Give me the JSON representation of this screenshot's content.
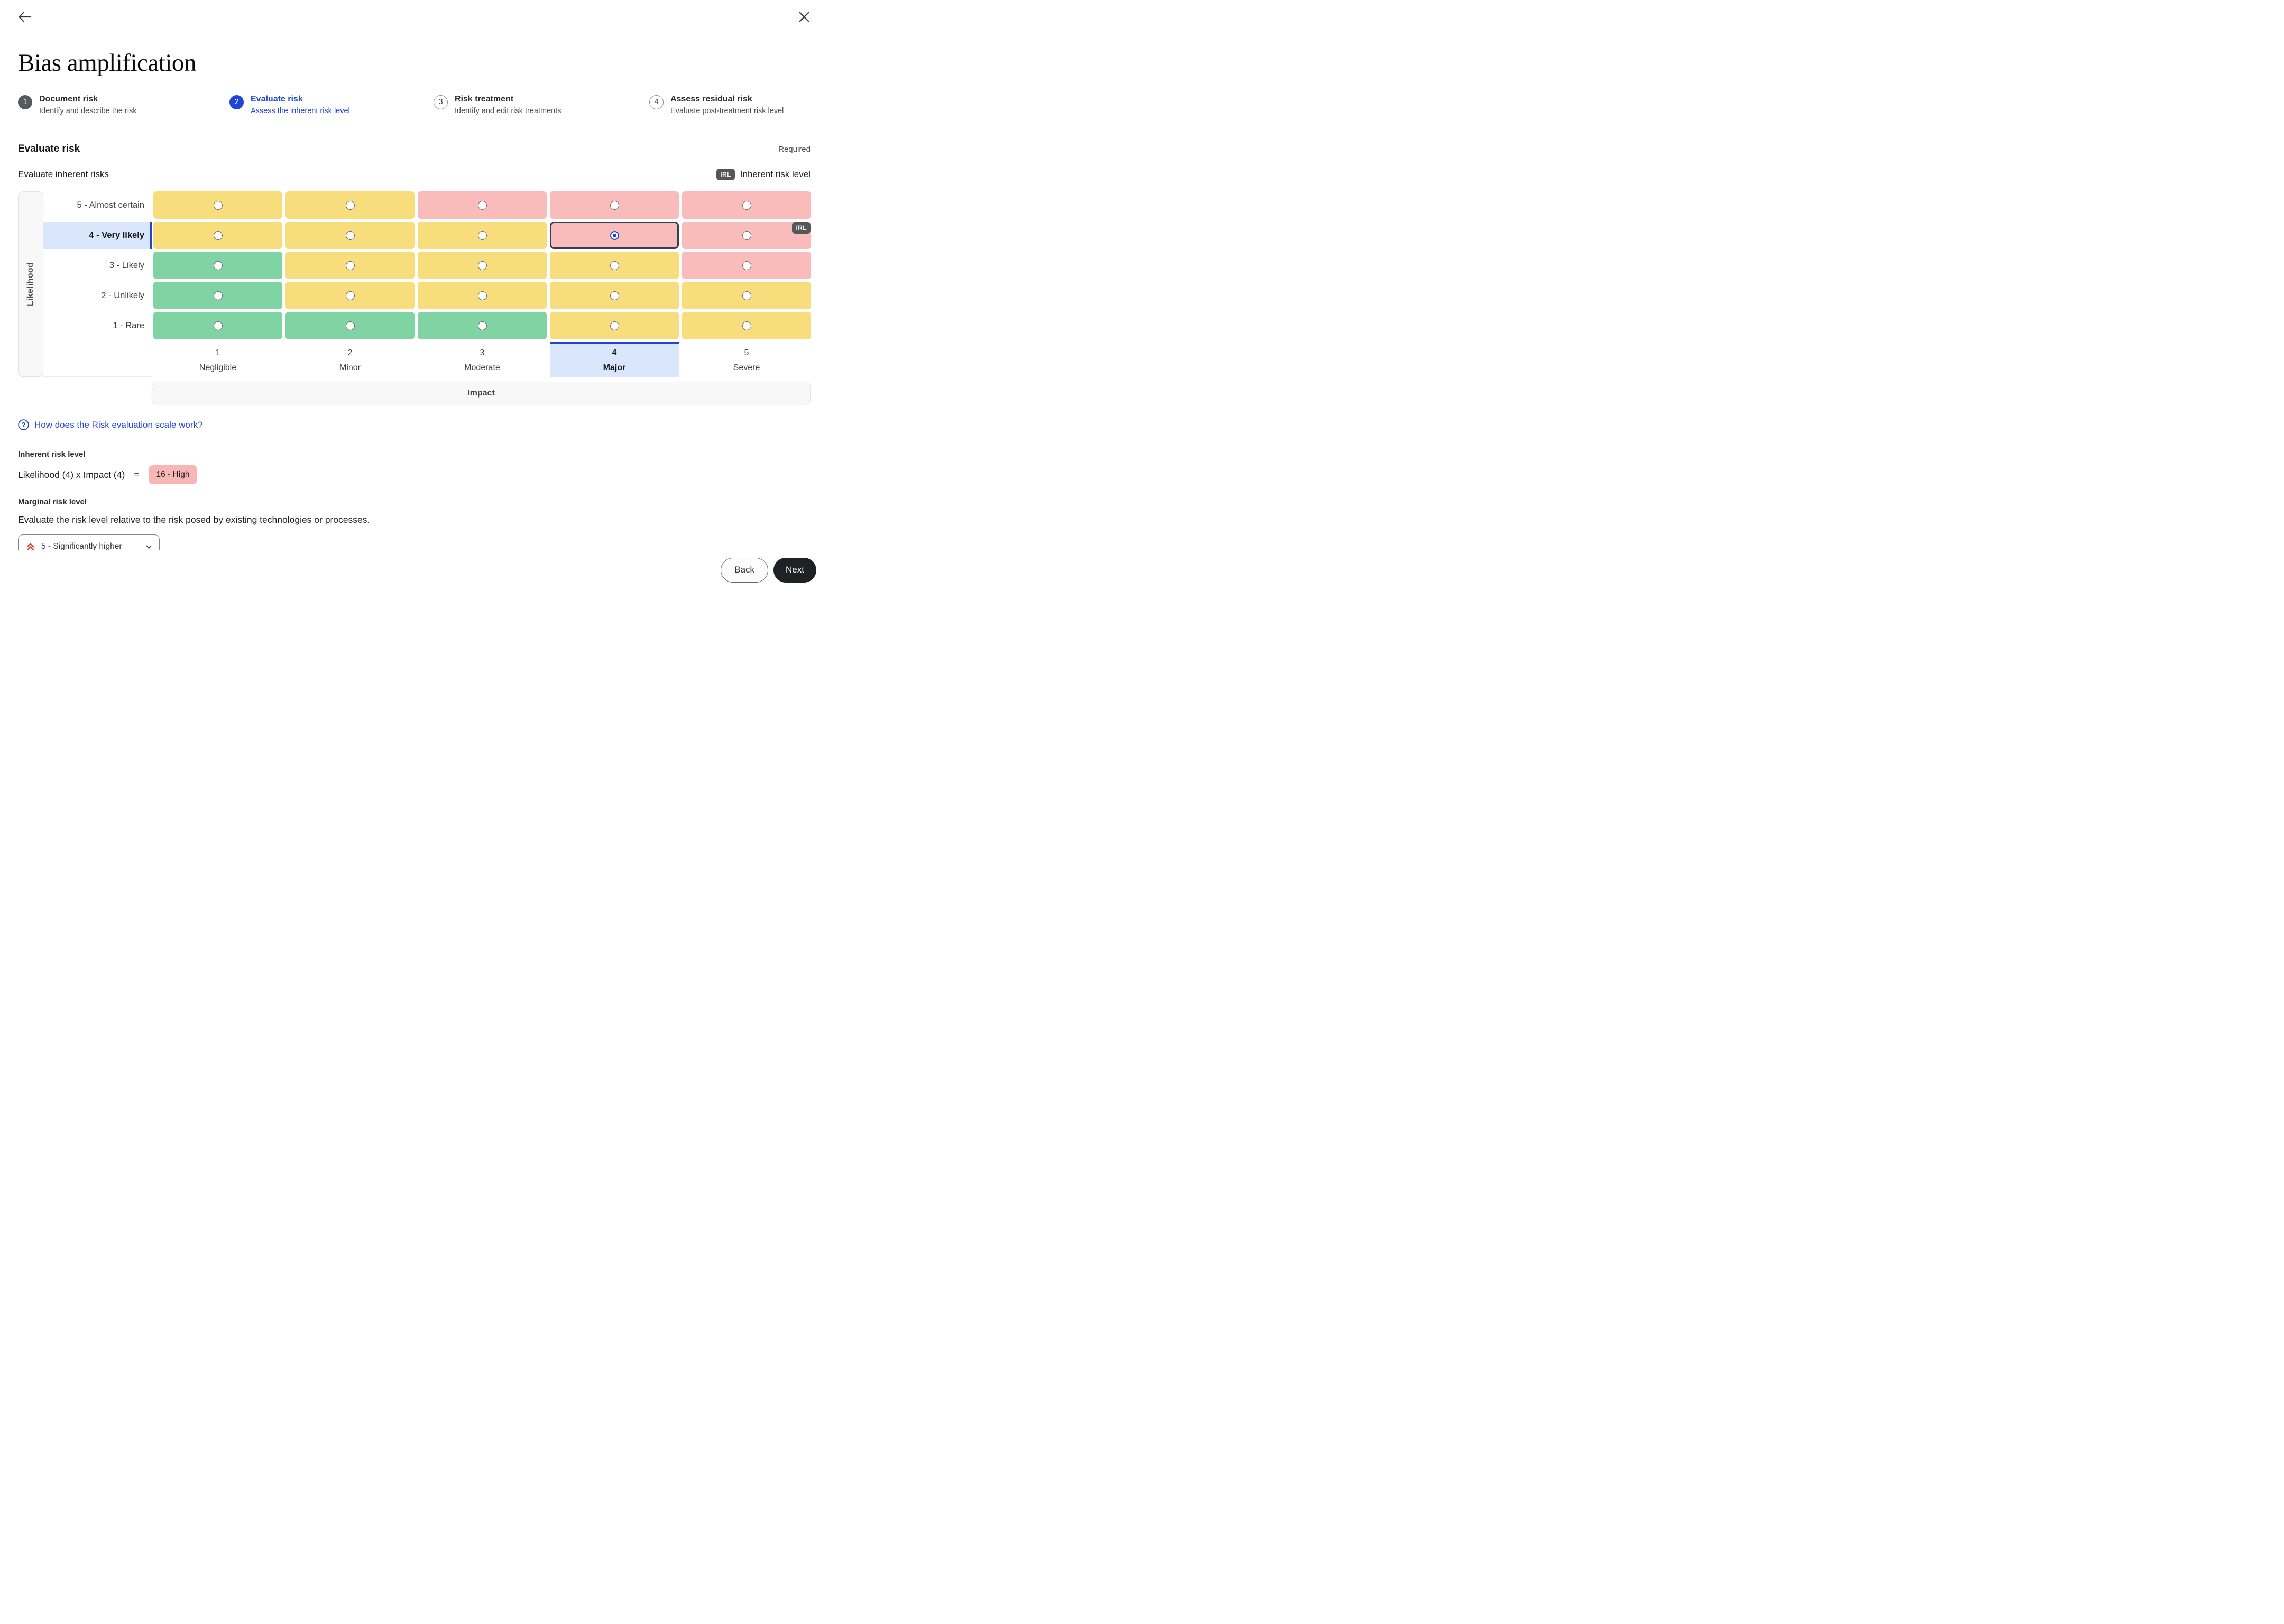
{
  "topbar": {
    "back_icon": "arrow-left",
    "close_icon": "x"
  },
  "page": {
    "title": "Bias amplification"
  },
  "stepper": {
    "steps": [
      {
        "number": "1",
        "title": "Document risk",
        "subtitle": "Identify and describe the risk",
        "state": "done"
      },
      {
        "number": "2",
        "title": "Evaluate risk",
        "subtitle": "Assess the inherent risk level",
        "state": "active"
      },
      {
        "number": "3",
        "title": "Risk treatment",
        "subtitle": "Identify and edit risk treatments",
        "state": "upcoming"
      },
      {
        "number": "4",
        "title": "Assess residual risk",
        "subtitle": "Evaluate post-treatment risk level",
        "state": "upcoming"
      }
    ]
  },
  "section": {
    "heading": "Evaluate risk",
    "required_label": "Required",
    "subheading": "Evaluate inherent risks",
    "legend_badge": "IRL",
    "legend_text": "Inherent risk level"
  },
  "matrix": {
    "y_axis_label": "Likelihood",
    "x_axis_label": "Impact",
    "irl_badge": "IRL",
    "rows": [
      {
        "label": "5 - Almost certain",
        "cells": [
          "yellow",
          "yellow",
          "red",
          "red",
          "red"
        ]
      },
      {
        "label": "4 - Very likely",
        "cells": [
          "yellow",
          "yellow",
          "yellow",
          "red",
          "red"
        ],
        "active": true,
        "selected_cell": 3,
        "irl_badge_cell": 4
      },
      {
        "label": "3 - Likely",
        "cells": [
          "green",
          "yellow",
          "yellow",
          "yellow",
          "red"
        ]
      },
      {
        "label": "2 - Unlikely",
        "cells": [
          "green",
          "yellow",
          "yellow",
          "yellow",
          "yellow"
        ]
      },
      {
        "label": "1 - Rare",
        "cells": [
          "green",
          "green",
          "green",
          "yellow",
          "yellow"
        ]
      }
    ],
    "columns": [
      {
        "number": "1",
        "label": "Negligible"
      },
      {
        "number": "2",
        "label": "Minor"
      },
      {
        "number": "3",
        "label": "Moderate"
      },
      {
        "number": "4",
        "label": "Major"
      },
      {
        "number": "5",
        "label": "Severe"
      }
    ],
    "selected_column": 3,
    "colors": {
      "yellow": "#F8DD7D",
      "green": "#80D4A4",
      "red": "#FABBBB",
      "accent": "#2145D6",
      "selected_row_bg": "#D9E6FB",
      "selected_cell_border": "#363F4F"
    }
  },
  "help_link": {
    "text": "How does the Risk evaluation scale work?",
    "icon": "question-circle"
  },
  "inherent": {
    "label": "Inherent risk level",
    "formula": "Likelihood (4) x Impact (4)",
    "equals": "=",
    "result": "16 - High",
    "result_color": "#F8B7B7"
  },
  "marginal": {
    "label": "Marginal risk level",
    "description": "Evaluate the risk level relative to the risk posed by existing technologies or processes.",
    "dropdown_value": "5 - Significantly higher",
    "dropdown_icon": "double-chevron-up",
    "dropdown_icon_color": "#E23B1E"
  },
  "footer": {
    "back_label": "Back",
    "next_label": "Next"
  }
}
